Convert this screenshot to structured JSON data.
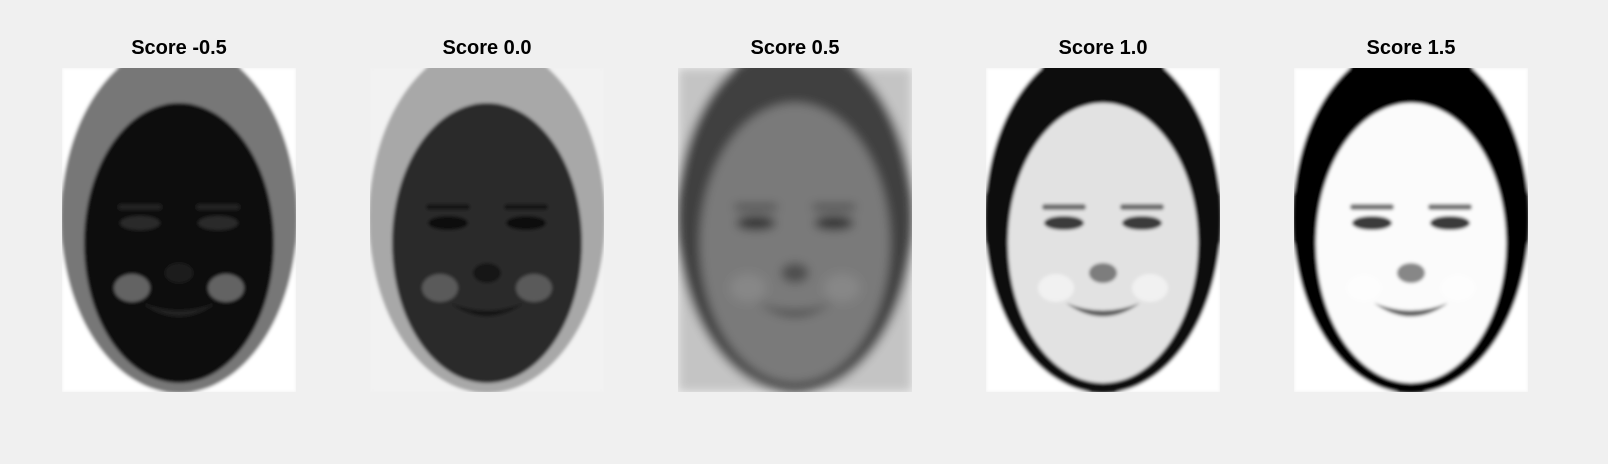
{
  "figure": {
    "background": "#f0f0f0",
    "panels": [
      {
        "title": "Score -0.5",
        "score": -0.5,
        "icon": "face-image",
        "tone": {
          "bg": "#ffffff",
          "hair": "#777777",
          "skin": "#0d0d0d",
          "features": "#2a2a2a",
          "highlight": "#bbbbbb"
        }
      },
      {
        "title": "Score 0.0",
        "score": 0.0,
        "icon": "face-image",
        "tone": {
          "bg": "#f2f2f2",
          "hair": "#a8a8a8",
          "skin": "#2b2b2b",
          "features": "#0e0e0e",
          "highlight": "#8a8a8a"
        }
      },
      {
        "title": "Score 0.5",
        "score": 0.5,
        "icon": "face-image",
        "tone": {
          "bg": "#c4c4c4",
          "hair": "#3f3f3f",
          "skin": "#7a7a7a",
          "features": "#2e2e2e",
          "highlight": "#939393"
        }
      },
      {
        "title": "Score 1.0",
        "score": 1.0,
        "icon": "face-image",
        "tone": {
          "bg": "#ffffff",
          "hair": "#0e0e0e",
          "skin": "#e2e2e2",
          "features": "#3a3a3a",
          "highlight": "#ffffff"
        }
      },
      {
        "title": "Score 1.5",
        "score": 1.5,
        "icon": "face-image",
        "tone": {
          "bg": "#ffffff",
          "hair": "#050505",
          "skin": "#fbfbfb",
          "features": "#3a3a3a",
          "highlight": "#ffffff"
        }
      }
    ]
  }
}
